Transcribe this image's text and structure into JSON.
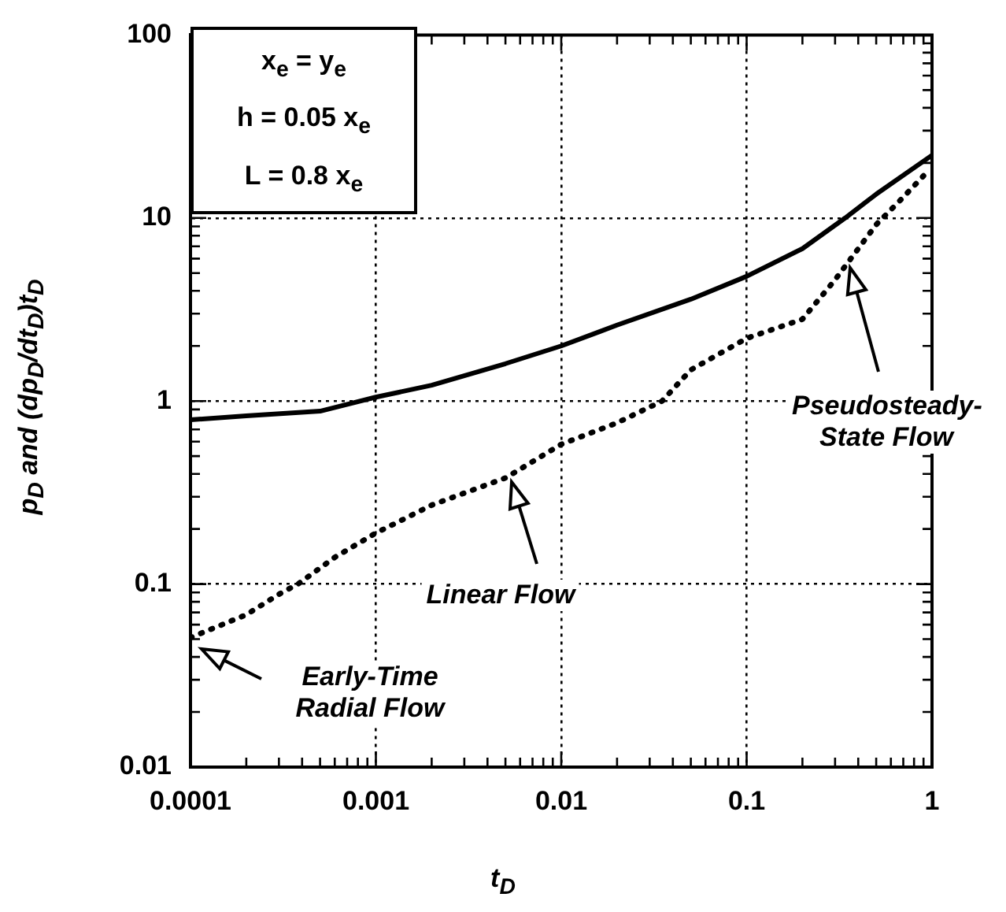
{
  "chart_data": {
    "type": "line",
    "xlabel": "t$_{D}$",
    "ylabel": "p$_{D}$  and  (dp$_{D}$/dt$_{D}$)t$_{D}$",
    "log": "xy",
    "xlim": [
      0.0001,
      1
    ],
    "xticks": [
      0.0001,
      0.001,
      0.01,
      0.1,
      1
    ],
    "ylim": [
      0.01,
      100
    ],
    "yticks": [
      0.01,
      0.1,
      1,
      10,
      100
    ],
    "grid": true,
    "legend": false,
    "marker": "none",
    "series": [
      {
        "color": "#000000",
        "line_style": "solid",
        "x": [
          0.0001,
          0.0002,
          0.0005,
          0.001,
          0.002,
          0.005,
          0.01,
          0.02,
          0.05,
          0.1,
          0.2,
          0.34,
          0.5,
          1
        ],
        "values": [
          0.79,
          0.83,
          0.88,
          1.05,
          1.22,
          1.6,
          2.0,
          2.6,
          3.6,
          4.8,
          6.8,
          10,
          13.5,
          22
        ]
      },
      {
        "color": "#000000",
        "line_style": "dotted",
        "x": [
          0.0001,
          0.0002,
          0.0003,
          0.00038,
          0.0006,
          0.001,
          0.002,
          0.005,
          0.01,
          0.02,
          0.035,
          0.05,
          0.1,
          0.2,
          0.3,
          0.5,
          0.7,
          0.9
        ],
        "values": [
          0.051,
          0.068,
          0.088,
          0.1,
          0.14,
          0.19,
          0.27,
          0.38,
          0.58,
          0.76,
          1.0,
          1.48,
          2.2,
          2.8,
          4.6,
          9.2,
          13,
          17
        ]
      }
    ],
    "annotations": [
      "x$_{e}$ = y$_{e}$",
      "h = 0.05 x$_{e}$",
      "L = 0.8 x$_{e}$",
      "Early-Time Radial Flow",
      "Linear Flow",
      "Pseudosteady-State Flow"
    ]
  }
}
